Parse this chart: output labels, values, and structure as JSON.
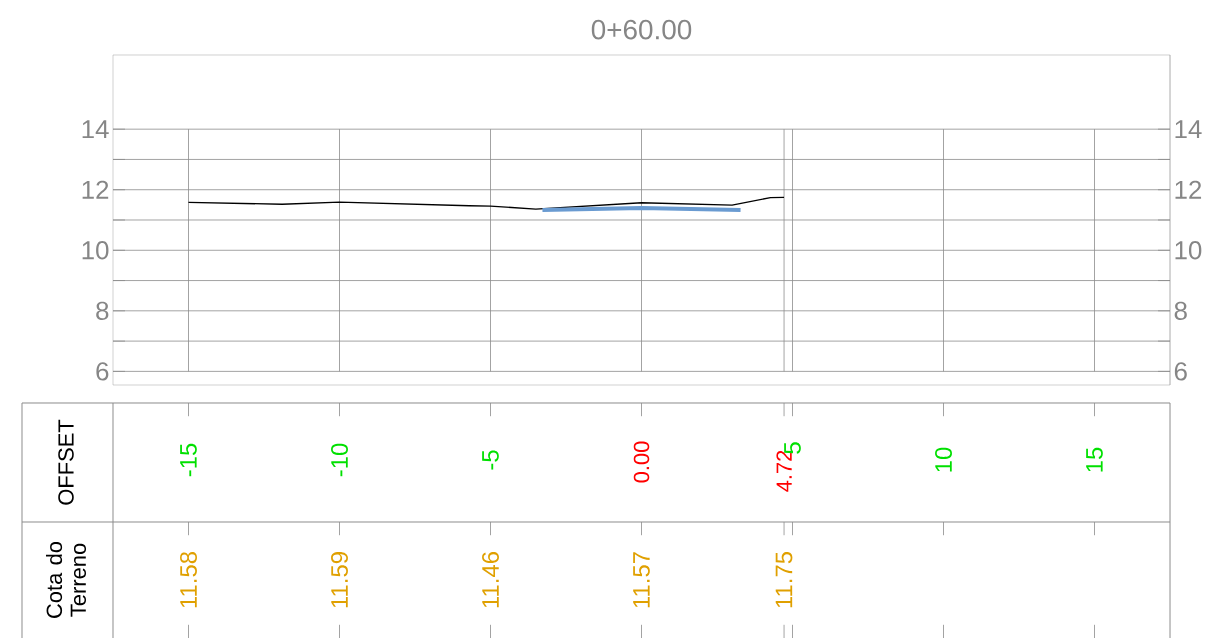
{
  "chart_data": {
    "type": "line",
    "title": "0+60.00",
    "series": [
      {
        "color": "#000000",
        "x": [
          -15,
          -11.9,
          -10,
          -5.7,
          -5,
          -3.5,
          0,
          3,
          4.27,
          4.72
        ],
        "values": [
          11.58,
          11.52,
          11.59,
          11.47,
          11.46,
          11.36,
          11.57,
          11.49,
          11.74,
          11.75
        ]
      },
      {
        "color": "#6a9bd1",
        "x": [
          -3.28,
          0,
          3.28
        ],
        "values": [
          11.33,
          11.4,
          11.33
        ]
      }
    ],
    "xlim": [
      -17.5,
      17.5
    ],
    "xticks": [
      -15,
      -10,
      -5,
      {
        "value": 0,
        "label": "0.00"
      },
      {
        "value": 4.72,
        "label": "4.72"
      },
      5,
      10,
      15
    ],
    "ylim": [
      5.55,
      16.45
    ],
    "yticks": [
      6,
      {
        "value": 7,
        "label": null
      },
      8,
      {
        "value": 9,
        "label": null
      },
      10,
      {
        "value": 11,
        "label": null
      },
      12,
      {
        "value": 13,
        "label": null
      },
      14
    ],
    "y2lim": [
      5.55,
      16.45
    ],
    "y2ticks": [
      6,
      {
        "value": 7,
        "label": null
      },
      8,
      {
        "value": 9,
        "label": null
      },
      10,
      {
        "value": 11,
        "label": null
      },
      12,
      {
        "value": 13,
        "label": null
      },
      14
    ],
    "grid": true,
    "annotations": [
      "OFFSET",
      "Cota do Terreno",
      "11.58",
      "11.59",
      "11.46",
      "11.57",
      "11.75"
    ]
  }
}
